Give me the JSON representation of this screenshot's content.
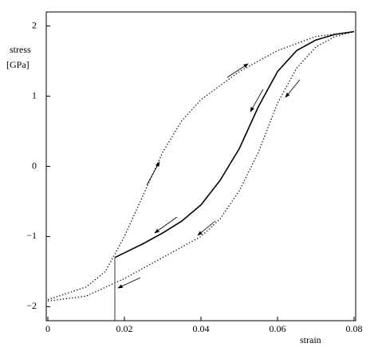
{
  "chart_data": {
    "type": "line",
    "x_label": "strain",
    "y_label": [
      "stress",
      "[GPa]"
    ],
    "xlim": [
      0,
      0.08
    ],
    "ylim": [
      -2.2,
      2.2
    ],
    "xticks": [
      0,
      0.02,
      0.04,
      0.06,
      0.08
    ],
    "yticks": [
      {
        "value": -2,
        "label": "−2"
      },
      {
        "value": -1,
        "label": "−1"
      },
      0,
      1,
      2
    ],
    "series": [
      {
        "style": "dotted",
        "color": "#000000",
        "x": [
          0,
          0.01,
          0.015,
          0.02,
          0.025,
          0.03,
          0.035,
          0.04,
          0.05,
          0.06,
          0.07,
          0.08
        ],
        "values": [
          -1.9,
          -1.72,
          -1.5,
          -1.0,
          -0.4,
          0.2,
          0.65,
          0.95,
          1.35,
          1.65,
          1.85,
          1.92
        ]
      },
      {
        "style": "solid",
        "color": "#000000",
        "x": [
          0.0175,
          0.025,
          0.03,
          0.035,
          0.04,
          0.045,
          0.05,
          0.055,
          0.06,
          0.065,
          0.07,
          0.075,
          0.08
        ],
        "values": [
          -1.3,
          -1.1,
          -0.95,
          -0.78,
          -0.55,
          -0.2,
          0.25,
          0.85,
          1.35,
          1.65,
          1.8,
          1.88,
          1.92
        ]
      },
      {
        "style": "dotted",
        "color": "#000000",
        "x": [
          0,
          0.01,
          0.02,
          0.03,
          0.04,
          0.045,
          0.05,
          0.055,
          0.06,
          0.065,
          0.07,
          0.075,
          0.08
        ],
        "values": [
          -1.92,
          -1.85,
          -1.6,
          -1.3,
          -1.0,
          -0.75,
          -0.35,
          0.2,
          0.9,
          1.4,
          1.7,
          1.85,
          1.92
        ]
      },
      {
        "style": "thin",
        "color": "#000000",
        "x": [
          0.0175,
          0.0175
        ],
        "values": [
          -1.3,
          -2.2
        ]
      }
    ]
  }
}
